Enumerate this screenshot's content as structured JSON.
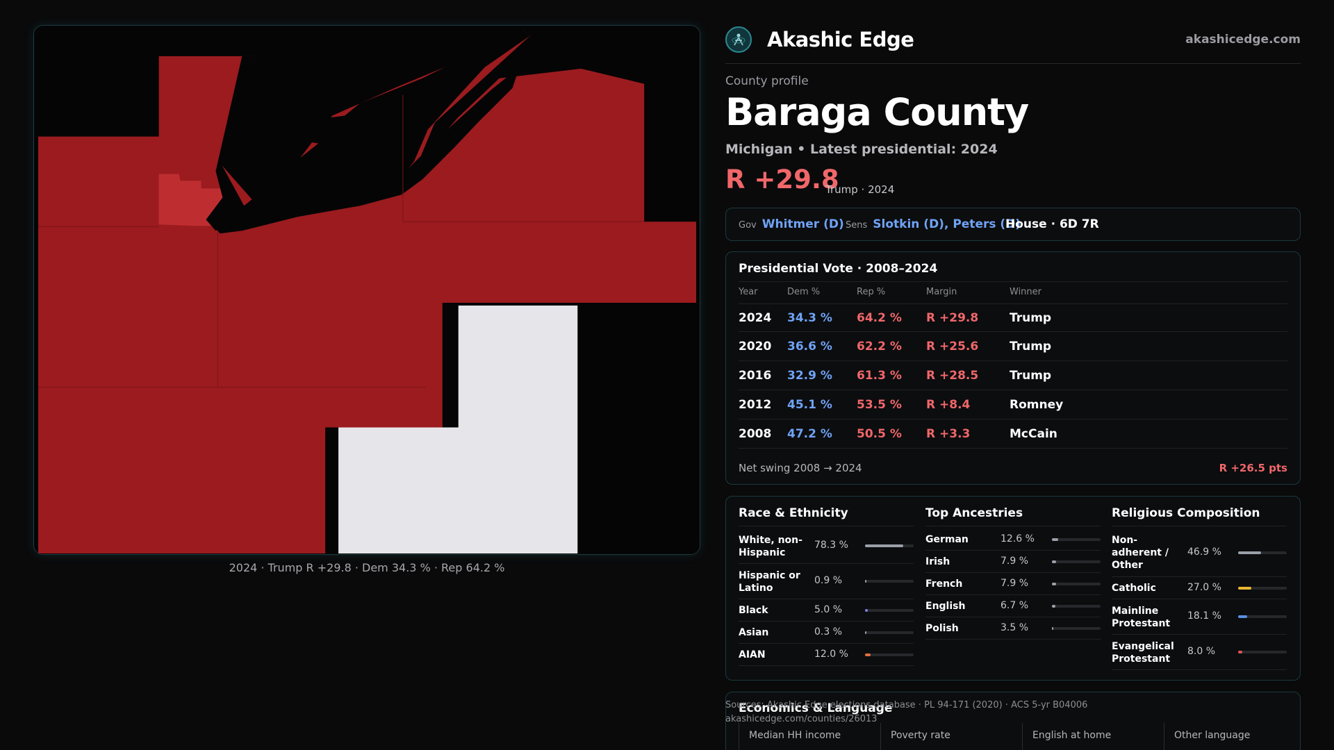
{
  "brand": {
    "name": "Akashic Edge",
    "url": "akashicedge.com",
    "logo_icon": "atom-figure-icon",
    "accent_color": "#2c8a93"
  },
  "profile": {
    "label": "County profile",
    "county": "Baraga County",
    "subtitle": "Michigan • Latest presidential: 2024",
    "margin": "R +29.8",
    "margin_note": "Trump · 2024"
  },
  "officials": {
    "gov_key": "Gov",
    "gov_value": "Whitmer (D)",
    "sens_key": "Sens",
    "sens_value": "Slotkin (D), Peters (D)",
    "house": "House · 6D 7R"
  },
  "presidential": {
    "title": "Presidential Vote · 2008–2024",
    "headers": {
      "year": "Year",
      "dem": "Dem %",
      "rep": "Rep %",
      "margin": "Margin",
      "winner": "Winner"
    },
    "rows": [
      {
        "year": "2024",
        "dem": "34.3 %",
        "rep": "64.2 %",
        "margin": "R +29.8",
        "winner": "Trump"
      },
      {
        "year": "2020",
        "dem": "36.6 %",
        "rep": "62.2 %",
        "margin": "R +25.6",
        "winner": "Trump"
      },
      {
        "year": "2016",
        "dem": "32.9 %",
        "rep": "61.3 %",
        "margin": "R +28.5",
        "winner": "Trump"
      },
      {
        "year": "2012",
        "dem": "45.1 %",
        "rep": "53.5 %",
        "margin": "R +8.4",
        "winner": "Romney"
      },
      {
        "year": "2008",
        "dem": "47.2 %",
        "rep": "50.5 %",
        "margin": "R +3.3",
        "winner": "McCain"
      }
    ],
    "swing_label": "Net swing 2008 → 2024",
    "swing_value": "R +26.5 pts"
  },
  "race": {
    "title": "Race & Ethnicity",
    "items": [
      {
        "label": "White, non-Hispanic",
        "pct": "78.3 %",
        "value": 0.783,
        "color": "#9aa0a8"
      },
      {
        "label": "Hispanic or Latino",
        "pct": "0.9 %",
        "value": 0.009,
        "color": "#9aa0a8"
      },
      {
        "label": "Black",
        "pct": "5.0 %",
        "value": 0.05,
        "color": "#7d7de8"
      },
      {
        "label": "Asian",
        "pct": "0.3 %",
        "value": 0.003,
        "color": "#9aa0a8"
      },
      {
        "label": "AIAN",
        "pct": "12.0 %",
        "value": 0.12,
        "color": "#e0703a"
      }
    ]
  },
  "ancestries": {
    "title": "Top Ancestries",
    "items": [
      {
        "label": "German",
        "pct": "12.6 %",
        "value": 0.126,
        "color": "#9aa0a8"
      },
      {
        "label": "Irish",
        "pct": "7.9 %",
        "value": 0.079,
        "color": "#9aa0a8"
      },
      {
        "label": "French",
        "pct": "7.9 %",
        "value": 0.079,
        "color": "#9aa0a8"
      },
      {
        "label": "English",
        "pct": "6.7 %",
        "value": 0.067,
        "color": "#9aa0a8"
      },
      {
        "label": "Polish",
        "pct": "3.5 %",
        "value": 0.035,
        "color": "#9aa0a8"
      }
    ]
  },
  "religion": {
    "title": "Religious Composition",
    "items": [
      {
        "label": "Non-adherent / Other",
        "pct": "46.9 %",
        "value": 0.469,
        "color": "#9aa0a8"
      },
      {
        "label": "Catholic",
        "pct": "27.0 %",
        "value": 0.27,
        "color": "#e8b830"
      },
      {
        "label": "Mainline Protestant",
        "pct": "18.1 %",
        "value": 0.181,
        "color": "#5b8fe0"
      },
      {
        "label": "Evangelical Protestant",
        "pct": "8.0 %",
        "value": 0.08,
        "color": "#e05555"
      }
    ]
  },
  "economics": {
    "title": "Economics & Language",
    "cells": [
      "Median HH income",
      "Poverty rate",
      "English at home",
      "Other language"
    ]
  },
  "sources": {
    "line1": "Sources: Akashic Edge elections database · PL 94-171 (2020) · ACS 5-yr B04006",
    "line2": "akashicedge.com/counties/26013"
  },
  "map": {
    "caption": "2024 · Trump R +29.8 · Dem 34.3 % · Rep 64.2 %",
    "colors": {
      "rep": "#9b1b1f",
      "rep_light": "#be2e31",
      "water": "#050505",
      "nodata": "#e6e6ea"
    }
  }
}
